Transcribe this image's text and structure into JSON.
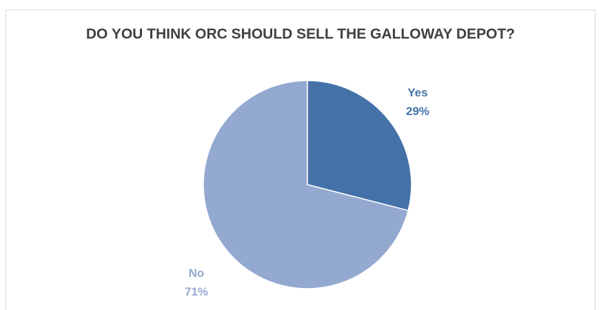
{
  "chart_data": {
    "type": "pie",
    "title": "DO YOU THINK ORC SHOULD SELL THE GALLOWAY DEPOT?",
    "slices": [
      {
        "label": "Yes",
        "value": 29,
        "value_label": "29%",
        "color": "#4472a8"
      },
      {
        "label": "No",
        "value": 71,
        "value_label": "71%",
        "color": "#94a9d0"
      }
    ],
    "legend": "none",
    "data_labels": "outside"
  }
}
